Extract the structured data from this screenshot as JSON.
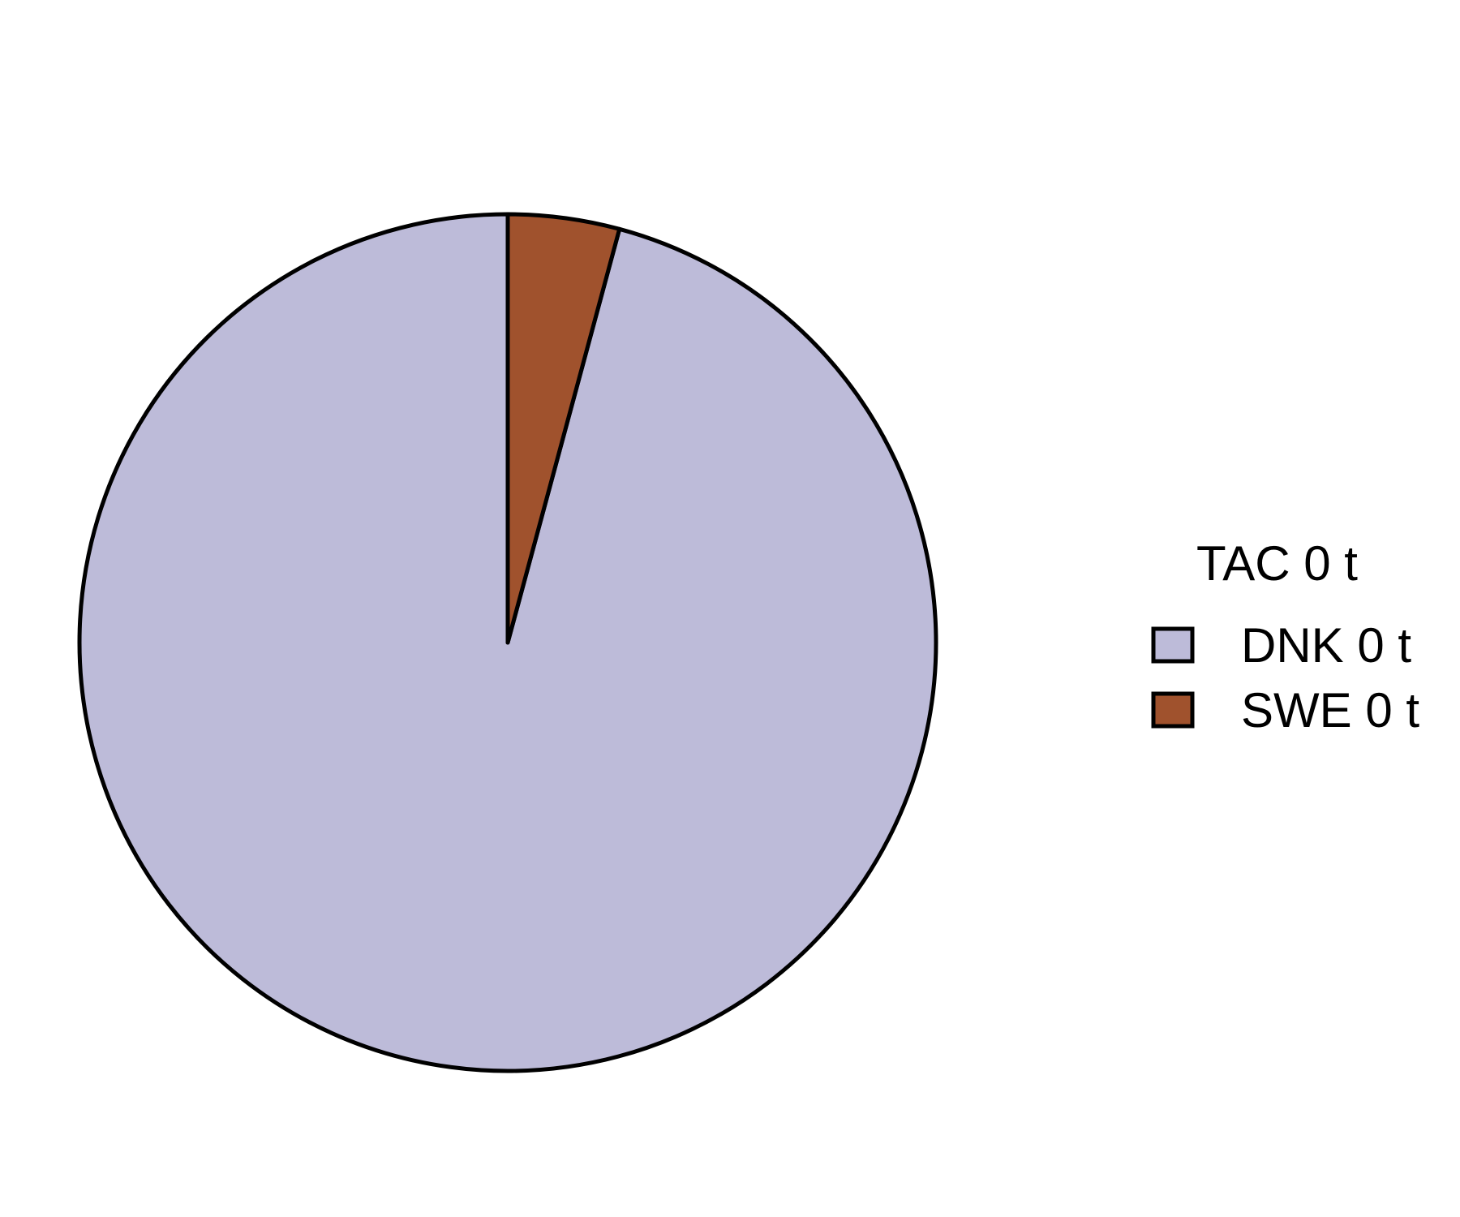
{
  "chart_data": {
    "type": "pie",
    "categories": [
      "DNK 0 t",
      "SWE 0 t"
    ],
    "values": [
      95.8,
      4.2
    ],
    "colors": [
      "#bdbbd9",
      "#a0522d"
    ],
    "start": "12 o'clock",
    "direction": "clockwise",
    "legend_title": "TAC 0 t",
    "legend_position": "right",
    "slice_outline_color": "#000000"
  }
}
